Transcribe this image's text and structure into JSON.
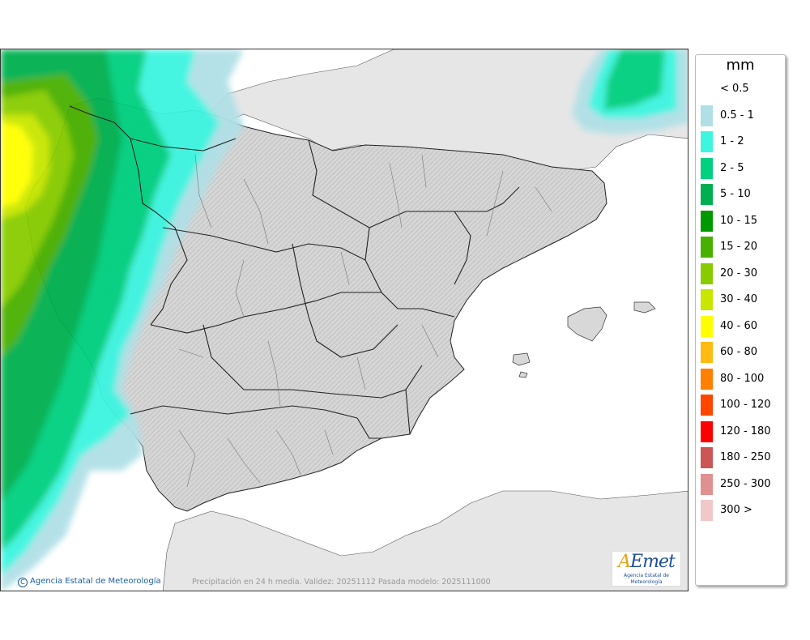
{
  "legend": {
    "unit": "mm",
    "items": [
      {
        "label": "< 0.5",
        "color": "#ffffff"
      },
      {
        "label": "0.5 - 1",
        "color": "#b0e0e6"
      },
      {
        "label": "1 - 2",
        "color": "#3ef5e0"
      },
      {
        "label": "2 - 5",
        "color": "#00d080"
      },
      {
        "label": "5 - 10",
        "color": "#00b04f"
      },
      {
        "label": "10 - 15",
        "color": "#009a00"
      },
      {
        "label": "15 - 20",
        "color": "#48b000"
      },
      {
        "label": "20 - 30",
        "color": "#88cc00"
      },
      {
        "label": "30 - 40",
        "color": "#c8e600"
      },
      {
        "label": "40 - 60",
        "color": "#ffff00"
      },
      {
        "label": "60 - 80",
        "color": "#ffbb11"
      },
      {
        "label": "80 - 100",
        "color": "#ff7f00"
      },
      {
        "label": "100 - 120",
        "color": "#ff4500"
      },
      {
        "label": "120 - 180",
        "color": "#ff0000"
      },
      {
        "label": "180 - 250",
        "color": "#cc5555"
      },
      {
        "label": "250 - 300",
        "color": "#e09090"
      },
      {
        "label": "300 >",
        "color": "#f0c8c8"
      }
    ]
  },
  "credit": "Agencia Estatal de Meteorología",
  "caption": "Precipitación en 24 h media. Validez: 20251112 Pasada modelo: 2025111000",
  "logo": {
    "word_a": "A",
    "word_rest": "Emet",
    "subtitle": "Agencia Estatal de Meteorología"
  },
  "colors": {
    "land": "#dcdcdc",
    "land_outside": "#e6e6e6",
    "sea": "#ffffff",
    "border": "#222222",
    "brand": "#1f4e9a"
  }
}
